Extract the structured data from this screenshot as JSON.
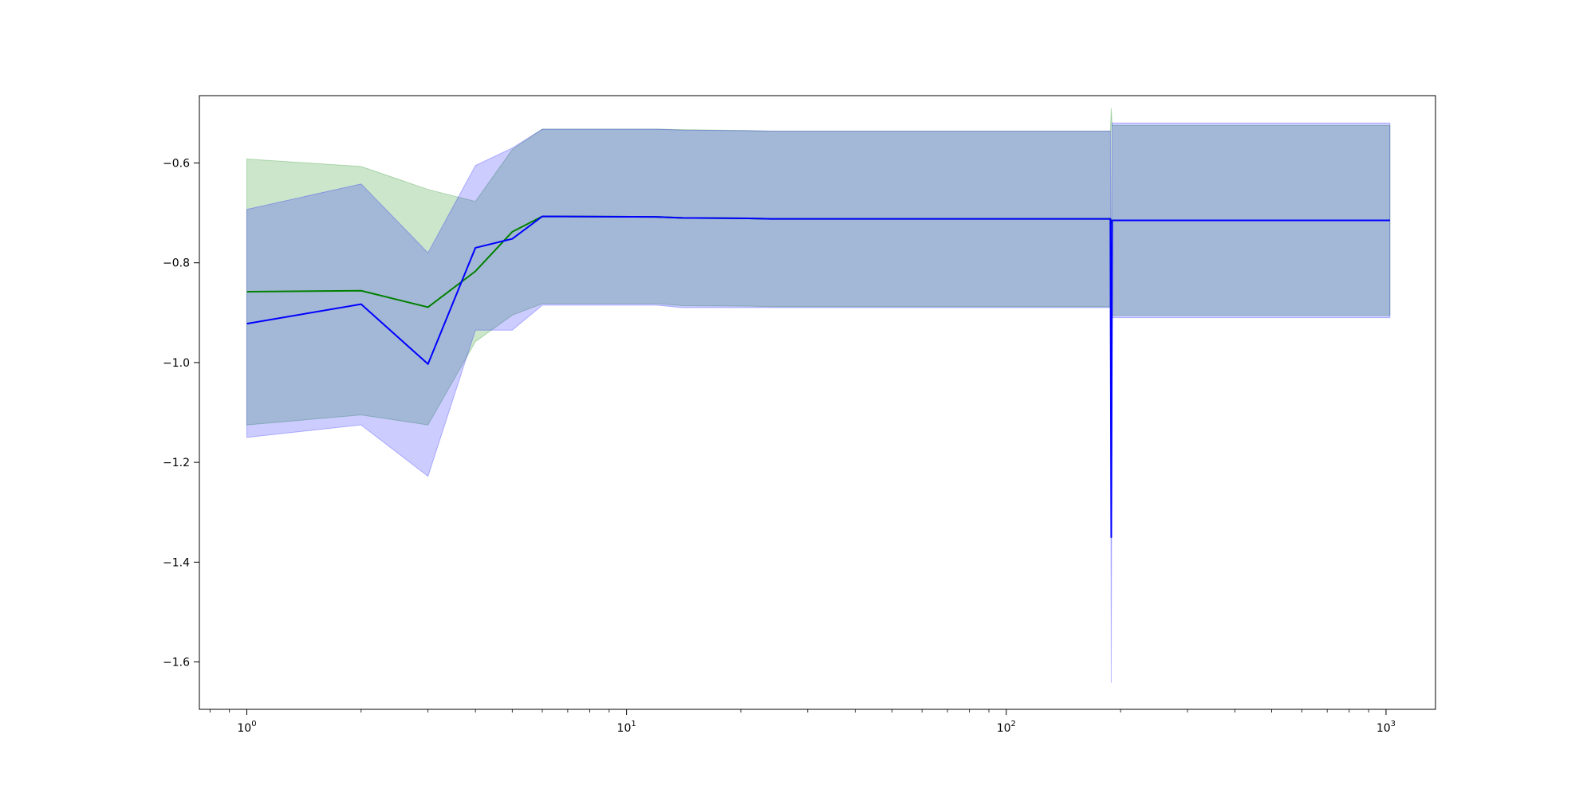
{
  "chart_data": {
    "type": "line",
    "title": "",
    "xlabel": "",
    "ylabel": "",
    "xscale": "log",
    "xlim": [
      0.75,
      1350
    ],
    "ylim": [
      -1.695,
      -0.465
    ],
    "grid": false,
    "legend": "none",
    "x_ticks": [
      {
        "base": "10",
        "exp": "0",
        "value": 1
      },
      {
        "base": "10",
        "exp": "1",
        "value": 10
      },
      {
        "base": "10",
        "exp": "2",
        "value": 100
      },
      {
        "base": "10",
        "exp": "3",
        "value": 1000
      }
    ],
    "y_ticks": [
      {
        "label": "−0.6",
        "value": -0.6
      },
      {
        "label": "−0.8",
        "value": -0.8
      },
      {
        "label": "−1.0",
        "value": -1.0
      },
      {
        "label": "−1.2",
        "value": -1.2
      },
      {
        "label": "−1.4",
        "value": -1.4
      },
      {
        "label": "−1.6",
        "value": -1.6
      }
    ],
    "series": [
      {
        "color": "#008000",
        "band_color": "#008000",
        "band_opacity": 0.2,
        "x": [
          1,
          2,
          3,
          4,
          5,
          6,
          12,
          14,
          21,
          24,
          188,
          189,
          190,
          1024
        ],
        "y": [
          -0.858,
          -0.856,
          -0.889,
          -0.817,
          -0.738,
          -0.707,
          -0.708,
          -0.71,
          -0.711,
          -0.712,
          -0.712,
          -0.72,
          -0.715,
          -0.715
        ],
        "lower": [
          -1.125,
          -1.105,
          -1.125,
          -0.958,
          -0.905,
          -0.882,
          -0.882,
          -0.886,
          -0.887,
          -0.888,
          -0.888,
          -0.905,
          -0.905,
          -0.905
        ],
        "upper": [
          -0.592,
          -0.607,
          -0.653,
          -0.677,
          -0.573,
          -0.532,
          -0.532,
          -0.533,
          -0.535,
          -0.536,
          -0.536,
          -0.49,
          -0.525,
          -0.525
        ]
      },
      {
        "color": "#0000ff",
        "band_color": "#0000ff",
        "band_opacity": 0.2,
        "x": [
          1,
          2,
          3,
          4,
          5,
          6,
          12,
          14,
          21,
          24,
          188,
          189,
          190,
          1024
        ],
        "y": [
          -0.922,
          -0.883,
          -1.003,
          -0.77,
          -0.752,
          -0.707,
          -0.708,
          -0.71,
          -0.711,
          -0.712,
          -0.712,
          -1.35,
          -0.715,
          -0.715
        ],
        "lower": [
          -1.15,
          -1.125,
          -1.228,
          -0.935,
          -0.935,
          -0.885,
          -0.885,
          -0.89,
          -0.89,
          -0.89,
          -0.89,
          -1.642,
          -0.91,
          -0.91
        ],
        "upper": [
          -0.693,
          -0.642,
          -0.78,
          -0.605,
          -0.57,
          -0.532,
          -0.532,
          -0.534,
          -0.535,
          -0.536,
          -0.536,
          -0.88,
          -0.52,
          -0.52
        ]
      }
    ]
  }
}
